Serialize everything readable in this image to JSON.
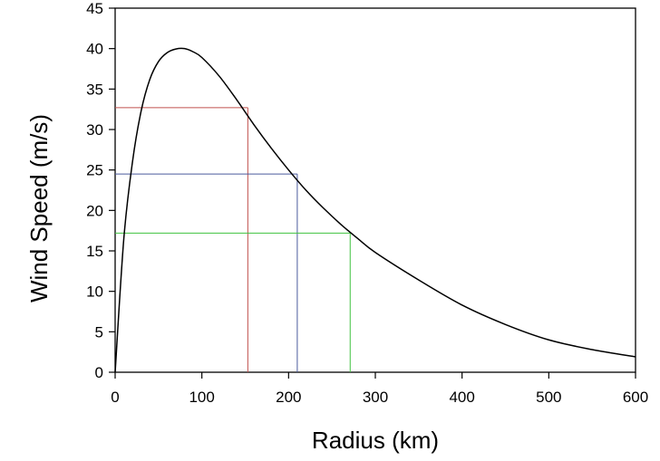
{
  "chart_data": {
    "type": "line",
    "title": "",
    "xlabel": "Radius (km)",
    "ylabel": "Wind Speed (m/s)",
    "xlim": [
      0,
      600
    ],
    "ylim": [
      0,
      45
    ],
    "xticks": [
      0,
      100,
      200,
      300,
      400,
      500,
      600
    ],
    "yticks": [
      0,
      5,
      10,
      15,
      20,
      25,
      30,
      35,
      40,
      45
    ],
    "grid": false,
    "legend": "none",
    "series": [
      {
        "color": "#000000",
        "x": [
          0,
          10,
          20,
          30,
          40,
          50,
          60,
          70,
          80,
          90,
          100,
          120,
          140,
          160,
          180,
          200,
          220,
          240,
          260,
          280,
          300,
          350,
          400,
          450,
          500,
          550,
          600
        ],
        "y": [
          0,
          16.5,
          26,
          32.3,
          36.2,
          38.4,
          39.5,
          39.95,
          40.0,
          39.6,
          38.9,
          36.6,
          33.7,
          30.6,
          27.7,
          25.0,
          22.5,
          20.3,
          18.3,
          16.5,
          14.8,
          11.4,
          8.3,
          5.9,
          4.0,
          2.8,
          1.9
        ]
      }
    ],
    "reference_lines": [
      {
        "color": "#c0504d",
        "x": 153,
        "y": 32.7
      },
      {
        "color": "#4b5a9e",
        "x": 210,
        "y": 24.5
      },
      {
        "color": "#3fc23f",
        "x": 271,
        "y": 17.2
      }
    ]
  }
}
